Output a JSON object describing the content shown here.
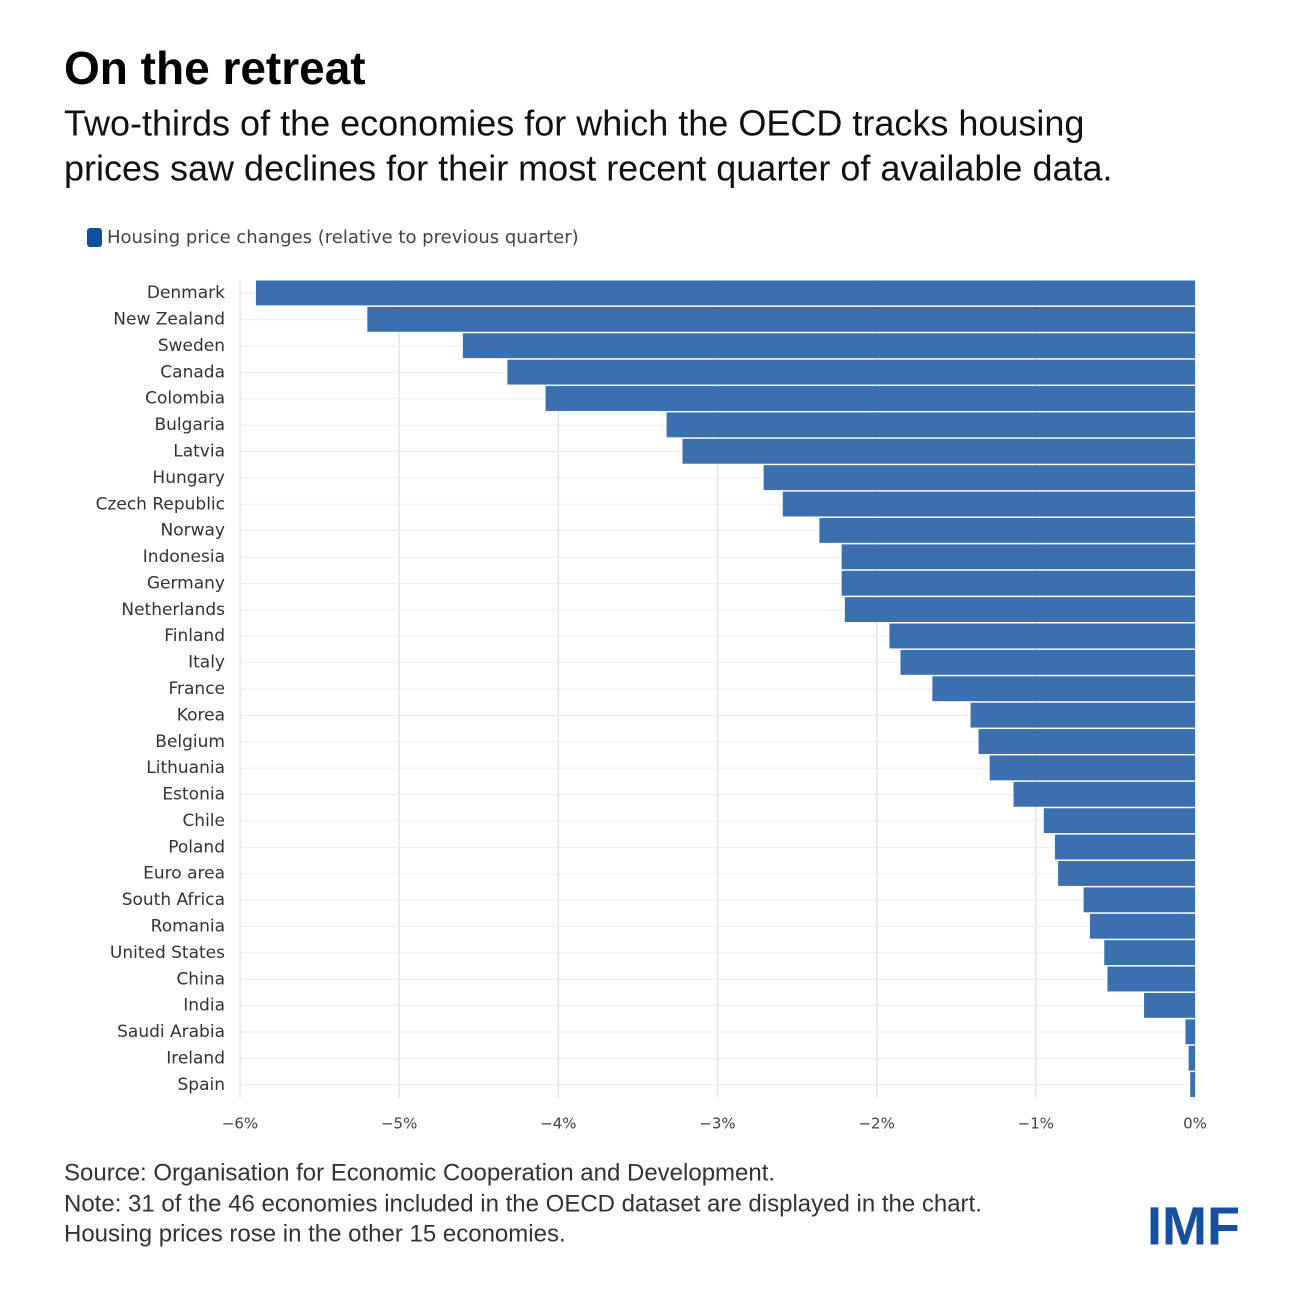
{
  "chart_data": {
    "type": "hbar",
    "title": "On the retreat",
    "subtitle": [
      "Two-thirds of the economies for which the OECD tracks housing",
      "prices saw declines for their most recent quarter of available data."
    ],
    "categories": [
      "Denmark",
      "New Zealand",
      "Sweden",
      "Canada",
      "Colombia",
      "Bulgaria",
      "Latvia",
      "Hungary",
      "Czech Republic",
      "Norway",
      "Indonesia",
      "Germany",
      "Netherlands",
      "Finland",
      "Italy",
      "France",
      "Korea",
      "Belgium",
      "Lithuania",
      "Estonia",
      "Chile",
      "Poland",
      "Euro area",
      "South Africa",
      "Romania",
      "United States",
      "China",
      "India",
      "Saudi Arabia",
      "Ireland",
      "Spain"
    ],
    "series": [
      {
        "name": "Housing price changes (relative to previous quarter)",
        "color": "#3b6fad",
        "values": [
          -5.9,
          -5.2,
          -4.6,
          -4.32,
          -4.08,
          -3.32,
          -3.22,
          -2.71,
          -2.59,
          -2.36,
          -2.22,
          -2.22,
          -2.2,
          -1.92,
          -1.85,
          -1.65,
          -1.41,
          -1.36,
          -1.29,
          -1.14,
          -0.95,
          -0.88,
          -0.86,
          -0.7,
          -0.66,
          -0.57,
          -0.55,
          -0.32,
          -0.06,
          -0.04,
          -0.03
        ]
      }
    ],
    "legend_color": "#0d4f9e",
    "xlim": [
      -6,
      0
    ],
    "xticks": [
      {
        "value": -6,
        "label": "−6%"
      },
      {
        "value": -5,
        "label": "−5%"
      },
      {
        "value": -4,
        "label": "−4%"
      },
      {
        "value": -3,
        "label": "−3%"
      },
      {
        "value": -2,
        "label": "−2%"
      },
      {
        "value": -1,
        "label": "−1%"
      },
      {
        "value": 0,
        "label": "0%"
      }
    ],
    "grid": true,
    "notes": [
      "Source: Organisation for Economic Cooperation and Development.",
      "Note: 31 of the 46 economies included in the OECD dataset are displayed in the chart.",
      "Housing prices rose in the other 15 economies."
    ],
    "logo": "IMF"
  }
}
